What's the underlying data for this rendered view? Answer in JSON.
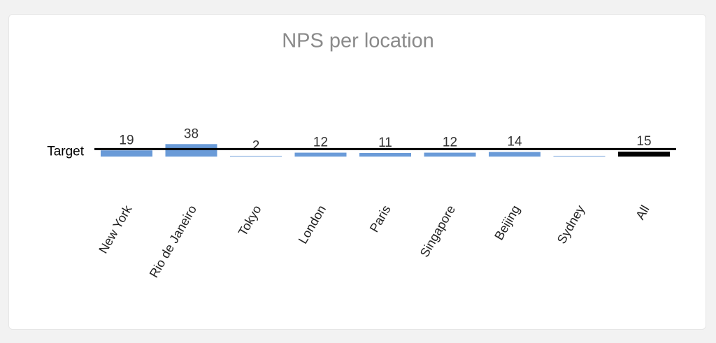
{
  "chart_data": {
    "type": "bar",
    "title": "NPS per location",
    "categories": [
      "New York",
      "Rio de Janeiro",
      "Tokyo",
      "London",
      "Paris",
      "Singapore",
      "Beijing",
      "Sydney",
      "All"
    ],
    "values": [
      19,
      38,
      2,
      12,
      11,
      12,
      14,
      2,
      15
    ],
    "value_labels": [
      "19",
      "38",
      "2",
      "12",
      "11",
      "12",
      "14",
      null,
      "15"
    ],
    "colors": [
      "#6a9bd8",
      "#6a9bd8",
      "#6a9bd8",
      "#6a9bd8",
      "#6a9bd8",
      "#6a9bd8",
      "#6a9bd8",
      "#6a9bd8",
      "#000000"
    ],
    "ylim": [
      -97,
      100
    ],
    "target": {
      "label": "Target",
      "value": 23
    }
  }
}
